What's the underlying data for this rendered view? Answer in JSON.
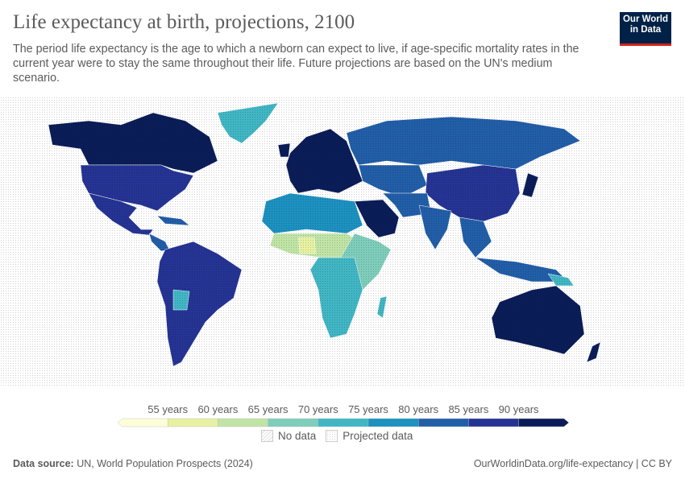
{
  "header": {
    "title": "Life expectancy at birth, projections, 2100",
    "subtitle": "The period life expectancy is the age to which a newborn can expect to live, if age-specific mortality rates in the current year were to stay the same throughout their life. Future projections are based on the UN's medium scenario.",
    "logo": "Our World in Data"
  },
  "legend": {
    "bins": [
      "55 years",
      "60 years",
      "65 years",
      "70 years",
      "75 years",
      "80 years",
      "85 years",
      "90 years"
    ],
    "colors": [
      "#fdfdd8",
      "#e7f1a1",
      "#c0e4a6",
      "#7fcdbb",
      "#41b6c4",
      "#1d91c0",
      "#225ea8",
      "#253494",
      "#0b1d58"
    ],
    "no_data": "No data",
    "projected": "Projected data"
  },
  "footer": {
    "source_label": "Data source:",
    "source": "UN, World Population Prospects (2024)",
    "link": "OurWorldinData.org/life-expectancy | CC BY"
  }
}
